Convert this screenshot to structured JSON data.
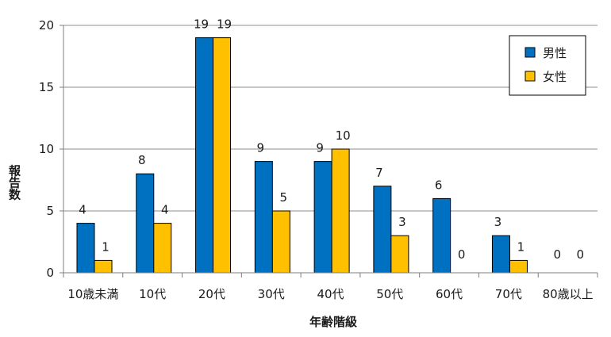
{
  "chart_data": {
    "type": "bar",
    "title": "",
    "xlabel": "年齢階級",
    "ylabel": "報告数",
    "categories": [
      "10歳未満",
      "10代",
      "20代",
      "30代",
      "40代",
      "50代",
      "60代",
      "70代",
      "80歳以上"
    ],
    "series": [
      {
        "name": "男性",
        "color": "#0070C0",
        "values": [
          4,
          8,
          19,
          9,
          9,
          7,
          6,
          3,
          0
        ]
      },
      {
        "name": "女性",
        "color": "#FFC000",
        "values": [
          1,
          4,
          19,
          5,
          10,
          3,
          0,
          1,
          0
        ]
      }
    ],
    "ylim": [
      0,
      20
    ],
    "yticks": [
      0,
      5,
      10,
      15,
      20
    ],
    "grid": true,
    "legend": "top-right",
    "data_labels": true
  }
}
